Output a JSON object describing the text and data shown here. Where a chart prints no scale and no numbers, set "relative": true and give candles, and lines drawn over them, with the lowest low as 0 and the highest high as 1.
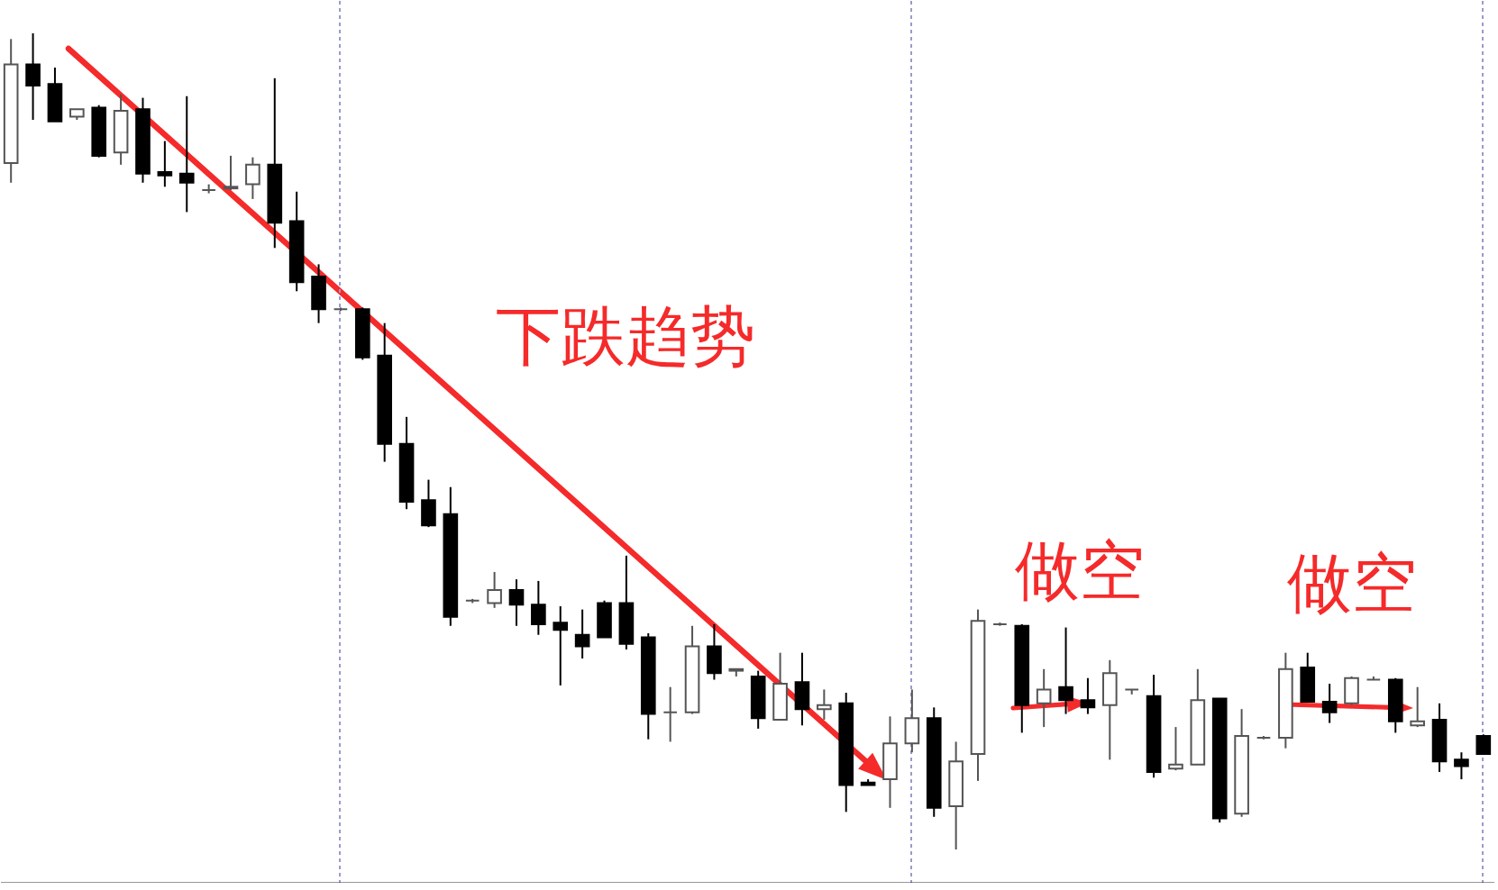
{
  "chart_data": {
    "type": "candlestick",
    "relative": true,
    "grid": "x",
    "categories": [
      null,
      null,
      null,
      null,
      null,
      null,
      null,
      null,
      null,
      null,
      null,
      null,
      null,
      null,
      null,
      null,
      null,
      null,
      null,
      null,
      null,
      null,
      null,
      null,
      null,
      null,
      null,
      null,
      null,
      null,
      null,
      null,
      null,
      null,
      null,
      null,
      null,
      null,
      null,
      null,
      null,
      null,
      null,
      null,
      null,
      null,
      null,
      null,
      null,
      null,
      null,
      null,
      null,
      null,
      null,
      null,
      null,
      null,
      null,
      null,
      null,
      null,
      null,
      null,
      null,
      null,
      null,
      null
    ],
    "ohlc": [
      [
        0.841,
        0.993,
        0.817,
        0.962
      ],
      [
        0.962,
        1.0,
        0.894,
        0.936
      ],
      [
        0.938,
        0.958,
        0.892,
        0.892
      ],
      [
        0.898,
        0.907,
        0.894,
        0.907
      ],
      [
        0.909,
        0.912,
        0.848,
        0.85
      ],
      [
        0.854,
        0.925,
        0.839,
        0.905
      ],
      [
        0.907,
        0.921,
        0.817,
        0.828
      ],
      [
        0.83,
        0.868,
        0.812,
        0.826
      ],
      [
        0.828,
        0.923,
        0.781,
        0.817
      ],
      [
        0.808,
        0.815,
        0.804,
        0.808
      ],
      [
        0.81,
        0.85,
        0.808,
        0.812
      ],
      [
        0.815,
        0.848,
        0.797,
        0.839
      ],
      [
        0.839,
        0.945,
        0.737,
        0.768
      ],
      [
        0.77,
        0.806,
        0.684,
        0.695
      ],
      [
        0.702,
        0.717,
        0.645,
        0.662
      ],
      [
        0.662,
        0.664,
        0.66,
        0.662
      ],
      [
        0.662,
        0.664,
        0.6,
        0.603
      ],
      [
        0.605,
        0.645,
        0.475,
        0.497
      ],
      [
        0.497,
        0.53,
        0.417,
        0.426
      ],
      [
        0.428,
        0.453,
        0.395,
        0.397
      ],
      [
        0.411,
        0.444,
        0.274,
        0.285
      ],
      [
        0.305,
        0.307,
        0.302,
        0.305
      ],
      [
        0.302,
        0.34,
        0.296,
        0.318
      ],
      [
        0.318,
        0.331,
        0.274,
        0.3
      ],
      [
        0.3,
        0.329,
        0.263,
        0.276
      ],
      [
        0.278,
        0.298,
        0.201,
        0.269
      ],
      [
        0.263,
        0.294,
        0.234,
        0.249
      ],
      [
        0.302,
        0.305,
        0.26,
        0.26
      ],
      [
        0.302,
        0.36,
        0.245,
        0.252
      ],
      [
        0.26,
        0.265,
        0.135,
        0.166
      ],
      [
        0.168,
        0.199,
        0.132,
        0.168
      ],
      [
        0.168,
        0.274,
        0.166,
        0.249
      ],
      [
        0.249,
        0.276,
        0.208,
        0.216
      ],
      [
        0.219,
        0.221,
        0.212,
        0.221
      ],
      [
        0.212,
        0.219,
        0.148,
        0.161
      ],
      [
        0.159,
        0.241,
        0.159,
        0.203
      ],
      [
        0.205,
        0.241,
        0.152,
        0.172
      ],
      [
        0.172,
        0.196,
        0.159,
        0.177
      ],
      [
        0.179,
        0.192,
        0.046,
        0.079
      ],
      [
        0.082,
        0.086,
        0.079,
        0.079
      ],
      [
        0.086,
        0.163,
        0.051,
        0.13
      ],
      [
        0.13,
        0.196,
        0.119,
        0.161
      ],
      [
        0.161,
        0.174,
        0.04,
        0.051
      ],
      [
        0.053,
        0.132,
        0.0,
        0.108
      ],
      [
        0.117,
        0.294,
        0.084,
        0.28
      ],
      [
        0.276,
        0.278,
        0.274,
        0.276
      ],
      [
        0.274,
        0.276,
        0.143,
        0.177
      ],
      [
        0.179,
        0.221,
        0.15,
        0.196
      ],
      [
        0.199,
        0.272,
        0.166,
        0.183
      ],
      [
        0.183,
        0.21,
        0.166,
        0.174
      ],
      [
        0.177,
        0.232,
        0.11,
        0.216
      ],
      [
        0.196,
        0.196,
        0.19,
        0.196
      ],
      [
        0.188,
        0.214,
        0.088,
        0.095
      ],
      [
        0.099,
        0.15,
        0.097,
        0.104
      ],
      [
        0.104,
        0.221,
        0.104,
        0.183
      ],
      [
        0.185,
        0.185,
        0.033,
        0.038
      ],
      [
        0.044,
        0.172,
        0.04,
        0.139
      ],
      [
        0.137,
        0.139,
        0.135,
        0.137
      ],
      [
        0.137,
        0.241,
        0.124,
        0.221
      ],
      [
        0.223,
        0.241,
        0.181,
        0.181
      ],
      [
        0.181,
        0.203,
        0.155,
        0.168
      ],
      [
        0.179,
        0.212,
        0.177,
        0.21
      ],
      [
        0.208,
        0.212,
        0.208,
        0.208
      ],
      [
        0.208,
        0.21,
        0.143,
        0.157
      ],
      [
        0.152,
        0.199,
        0.15,
        0.157
      ],
      [
        0.159,
        0.179,
        0.095,
        0.108
      ],
      [
        0.11,
        0.119,
        0.086,
        0.102
      ],
      [
        0.139,
        0.141,
        0.117,
        0.117
      ]
    ],
    "annotations": [
      "下跌趋势",
      "做空",
      "做空"
    ]
  }
}
